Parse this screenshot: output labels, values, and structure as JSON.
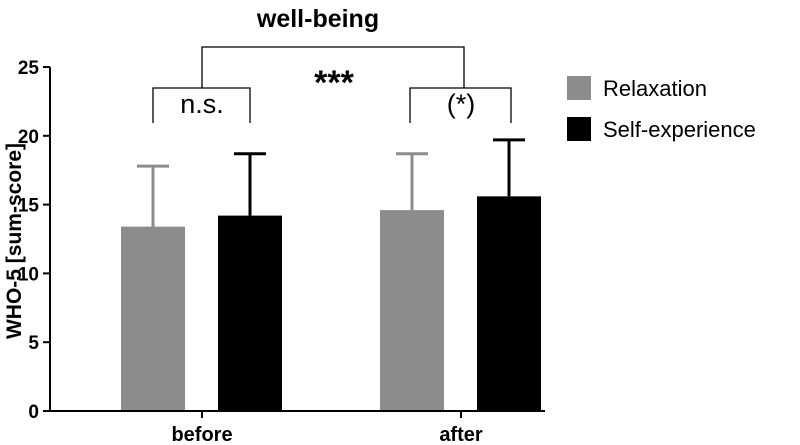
{
  "chart_data": {
    "type": "bar",
    "title": "well-being",
    "xlabel": "",
    "ylabel": "WHO-5 [sum-score]",
    "categories": [
      "before",
      "after"
    ],
    "ylim": [
      0,
      25
    ],
    "yticks": [
      0,
      5,
      10,
      15,
      20,
      25
    ],
    "series": [
      {
        "name": "Relaxation",
        "color": "#8c8c8c",
        "values": [
          13.4,
          14.6
        ],
        "errors": [
          4.4,
          4.1
        ]
      },
      {
        "name": "Self-experience",
        "color": "#000000",
        "values": [
          14.2,
          15.6
        ],
        "errors": [
          4.5,
          4.1
        ]
      }
    ],
    "legend": "right",
    "annotations": {
      "before_comparison": "n.s.",
      "after_comparison": "(*)",
      "time_comparison": "***"
    }
  }
}
